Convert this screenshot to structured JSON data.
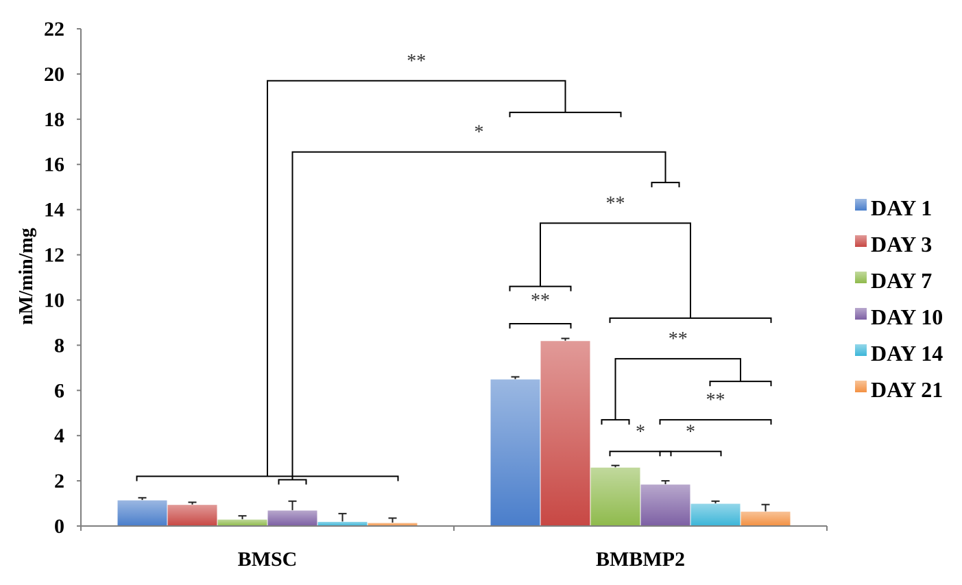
{
  "chart_data": {
    "type": "bar",
    "title": "",
    "xlabel": "",
    "ylabel": "nM/min/mg",
    "ylim": [
      0,
      22
    ],
    "yticks": [
      "0",
      "2",
      "4",
      "6",
      "8",
      "10",
      "12",
      "14",
      "16",
      "18",
      "20",
      "22"
    ],
    "categories": [
      "BMSC",
      "BMBMP2"
    ],
    "legend_position": "right",
    "series": [
      {
        "name": "DAY 1",
        "color": "#4a7ecb",
        "values": [
          1.15,
          6.5
        ],
        "errors": [
          0.1,
          0.1
        ]
      },
      {
        "name": "DAY 3",
        "color": "#c84844",
        "values": [
          0.95,
          8.2
        ],
        "errors": [
          0.1,
          0.1
        ]
      },
      {
        "name": "DAY 7",
        "color": "#8fba4c",
        "values": [
          0.3,
          2.6
        ],
        "errors": [
          0.15,
          0.08
        ]
      },
      {
        "name": "DAY 10",
        "color": "#7d60a4",
        "values": [
          0.7,
          1.85
        ],
        "errors": [
          0.4,
          0.15
        ]
      },
      {
        "name": "DAY 14",
        "color": "#3cb6d8",
        "values": [
          0.2,
          1.0
        ],
        "errors": [
          0.35,
          0.1
        ]
      },
      {
        "name": "DAY 21",
        "color": "#f39143",
        "values": [
          0.15,
          0.65
        ],
        "errors": [
          0.2,
          0.3
        ]
      }
    ],
    "annotations": [
      {
        "label": "**",
        "level": 19.7,
        "groups": [
          {
            "category": "BMSC",
            "series": [
              0,
              5
            ],
            "y": 2.2
          },
          {
            "category": "BMBMP2",
            "series": [
              0,
              2
            ],
            "y": 18.3
          }
        ]
      },
      {
        "label": "*",
        "level": 16.55,
        "groups": [
          {
            "category": "BMSC",
            "series": [
              3,
              3
            ],
            "y": 2.05
          },
          {
            "category": "BMBMP2",
            "series": [
              3,
              3
            ],
            "y": 15.2
          }
        ]
      },
      {
        "label": "**",
        "level": 13.4,
        "groups": [
          {
            "category": "BMBMP2",
            "series": [
              0,
              1
            ],
            "y": 10.6
          },
          {
            "category": "BMBMP2",
            "series": [
              2,
              5
            ],
            "y": 9.2
          }
        ]
      },
      {
        "label": "**",
        "level": 9.1,
        "groups": [
          {
            "category": "BMBMP2",
            "series": [
              0,
              1
            ],
            "y": 8.95
          }
        ]
      },
      {
        "label": "**",
        "level": 7.4,
        "groups": [
          {
            "category": "BMBMP2",
            "series": [
              2,
              2
            ],
            "y": 4.7
          },
          {
            "category": "BMBMP2",
            "series": [
              4,
              5
            ],
            "y": 6.4
          }
        ]
      },
      {
        "label": "**",
        "level": 4.7,
        "groups": [
          {
            "category": "BMBMP2",
            "series": [
              3,
              5
            ],
            "y": 4.7
          }
        ]
      },
      {
        "label": "*",
        "level": 3.3,
        "groups": [
          {
            "category": "BMBMP2",
            "series": [
              2,
              3
            ],
            "y": 3.3
          }
        ]
      },
      {
        "label": "*",
        "level": 3.3,
        "groups": [
          {
            "category": "BMBMP2",
            "series": [
              3,
              4
            ],
            "y": 3.3
          }
        ]
      }
    ]
  }
}
